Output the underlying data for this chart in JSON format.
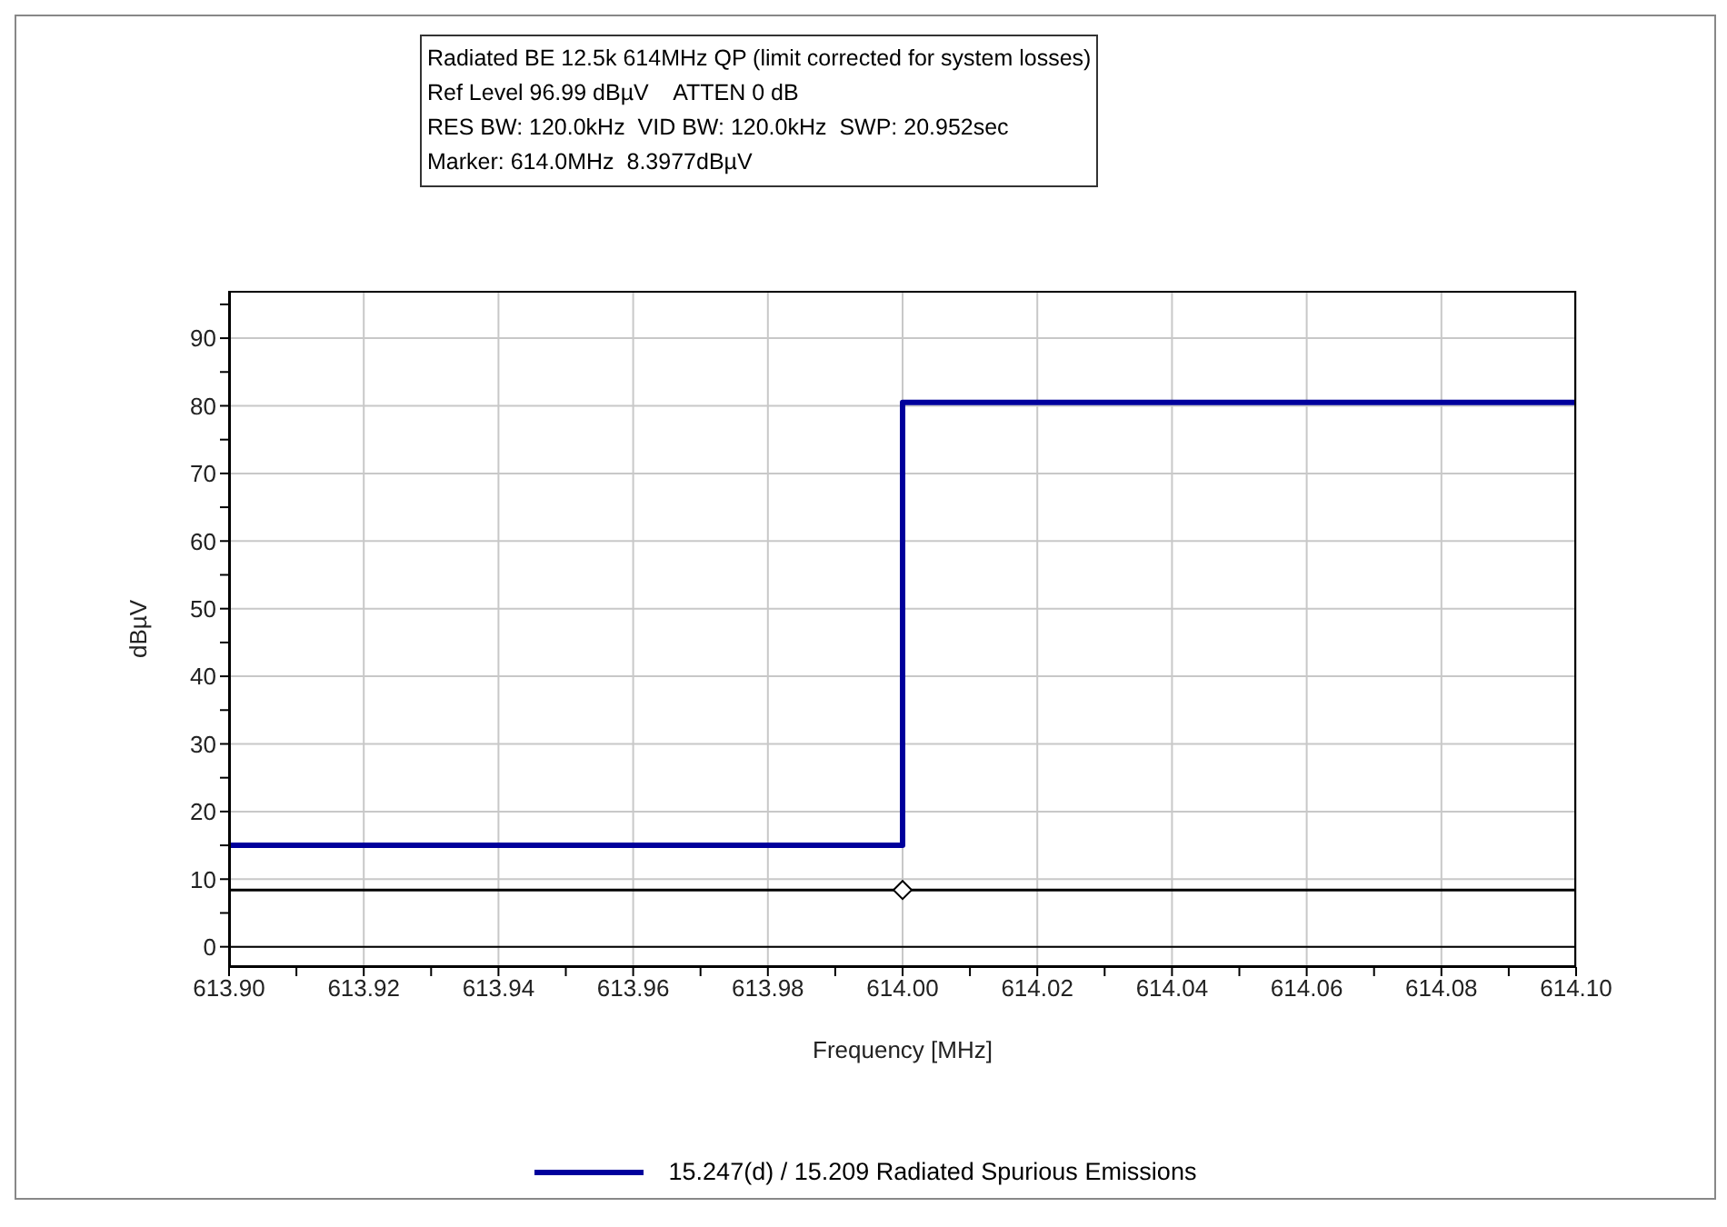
{
  "chart_data": {
    "type": "line",
    "annotations": [
      "Radiated BE 12.5k 614MHz QP (limit corrected for system losses)",
      "Ref Level 96.99 dBµV    ATTEN 0 dB",
      "RES BW: 120.0kHz  VID BW: 120.0kHz  SWP: 20.952sec",
      "Marker: 614.0MHz  8.3977dBµV"
    ],
    "xlabel": "Frequency [MHz]",
    "ylabel": "dBµV",
    "series": [
      {
        "name": "15.247(d) / 15.209 Radiated Spurious Emissions",
        "type": "step",
        "color": "#00009c",
        "x": [
          613.9,
          614.0,
          614.1
        ],
        "values": [
          15,
          80.5,
          80.5
        ]
      },
      {
        "color": "#000000",
        "x": [
          613.9,
          614.1
        ],
        "values": [
          8.4,
          8.4
        ]
      },
      {
        "type": "scatter",
        "marker": "diamond",
        "color": "#000000",
        "x": [
          614.0
        ],
        "values": [
          8.4
        ]
      }
    ],
    "xlim": [
      613.9,
      614.1
    ],
    "xticks": [
      {
        "value": 613.9,
        "label": "613.90"
      },
      {
        "value": 613.91,
        "label": null
      },
      {
        "value": 613.92,
        "label": "613.92"
      },
      {
        "value": 613.93,
        "label": null
      },
      {
        "value": 613.94,
        "label": "613.94"
      },
      {
        "value": 613.95,
        "label": null
      },
      {
        "value": 613.96,
        "label": "613.96"
      },
      {
        "value": 613.97,
        "label": null
      },
      {
        "value": 613.98,
        "label": "613.98"
      },
      {
        "value": 613.99,
        "label": null
      },
      {
        "value": 614.0,
        "label": "614.00"
      },
      {
        "value": 614.01,
        "label": null
      },
      {
        "value": 614.02,
        "label": "614.02"
      },
      {
        "value": 614.03,
        "label": null
      },
      {
        "value": 614.04,
        "label": "614.04"
      },
      {
        "value": 614.05,
        "label": null
      },
      {
        "value": 614.06,
        "label": "614.06"
      },
      {
        "value": 614.07,
        "label": null
      },
      {
        "value": 614.08,
        "label": "614.08"
      },
      {
        "value": 614.09,
        "label": null
      },
      {
        "value": 614.1,
        "label": "614.10"
      }
    ],
    "ylim": [
      -3,
      97
    ],
    "yticks": [
      0,
      {
        "value": 5,
        "label": null
      },
      10,
      {
        "value": 15,
        "label": null
      },
      20,
      {
        "value": 25,
        "label": null
      },
      30,
      {
        "value": 35,
        "label": null
      },
      40,
      {
        "value": 45,
        "label": null
      },
      50,
      {
        "value": 55,
        "label": null
      },
      60,
      {
        "value": 65,
        "label": null
      },
      70,
      {
        "value": 75,
        "label": null
      },
      80,
      {
        "value": 85,
        "label": null
      },
      90,
      {
        "value": 95,
        "label": null
      }
    ],
    "ref_lines": [
      {
        "axis": "y",
        "value": 0,
        "color": "#000000"
      }
    ],
    "grid": true,
    "legend": "bottom",
    "marker": "none",
    "line_style": "solid"
  }
}
